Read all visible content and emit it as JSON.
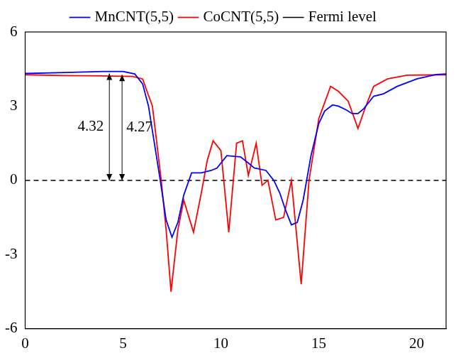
{
  "chart_data": {
    "type": "line",
    "xlim": [
      0,
      21.5
    ],
    "xticks": [
      0,
      5,
      10,
      15,
      20
    ],
    "ylim": [
      -6,
      6
    ],
    "yticks": [
      -6,
      -3,
      0,
      3,
      6
    ],
    "legend": "top",
    "grid": false,
    "series": [
      {
        "name": "MnCNT(5,5)",
        "color": "#0000ff",
        "line_style": "solid",
        "x": [
          0,
          2,
          4,
          5,
          5.6,
          6.0,
          6.3,
          6.6,
          6.9,
          7.2,
          7.5,
          7.8,
          8.1,
          8.5,
          9.0,
          9.5,
          9.8,
          10.3,
          11.0,
          11.4,
          11.7,
          12.3,
          12.7,
          13.0,
          13.3,
          13.6,
          13.9,
          14.2,
          14.6,
          15.0,
          15.3,
          15.7,
          16.0,
          16.4,
          16.7,
          17.0,
          17.3,
          17.8,
          18.3,
          19.0,
          20.0,
          21.0,
          21.5
        ],
        "values": [
          4.32,
          4.36,
          4.4,
          4.4,
          4.3,
          3.9,
          3.0,
          1.5,
          0.0,
          -1.6,
          -2.3,
          -1.7,
          -0.6,
          0.3,
          0.3,
          0.4,
          0.5,
          1.0,
          0.95,
          0.7,
          0.5,
          0.4,
          0.0,
          -0.5,
          -1.2,
          -1.8,
          -1.7,
          -0.8,
          1.0,
          2.3,
          2.8,
          3.05,
          3.0,
          2.85,
          2.7,
          2.7,
          2.9,
          3.4,
          3.5,
          3.8,
          4.1,
          4.28,
          4.3
        ]
      },
      {
        "name": "CoCNT(5,5)",
        "color": "#ff0000",
        "line_style": "solid",
        "x": [
          0,
          2,
          4,
          5.5,
          6.0,
          6.5,
          6.95,
          7.2,
          7.45,
          7.8,
          8.1,
          8.6,
          9.0,
          9.3,
          9.6,
          10.0,
          10.4,
          10.8,
          11.1,
          11.4,
          11.8,
          12.1,
          12.4,
          12.8,
          13.2,
          13.6,
          14.1,
          14.5,
          15.0,
          15.6,
          16.0,
          16.5,
          17.0,
          17.4,
          17.8,
          18.5,
          19.5,
          21.5
        ],
        "values": [
          4.27,
          4.24,
          4.22,
          4.2,
          4.1,
          3.0,
          0.0,
          -2.0,
          -4.5,
          -2.0,
          -0.8,
          -2.1,
          -0.5,
          0.8,
          1.6,
          1.2,
          -2.1,
          1.5,
          1.6,
          0.2,
          1.5,
          -0.2,
          0.0,
          -1.6,
          -1.5,
          0.0,
          -4.2,
          0.0,
          2.5,
          3.8,
          3.6,
          3.2,
          2.1,
          3.0,
          3.8,
          4.1,
          4.25,
          4.27
        ]
      },
      {
        "name": "Fermi level",
        "color": "#000000",
        "line_style": "dashed",
        "x": [
          0,
          21.5
        ],
        "values": [
          0,
          0
        ]
      }
    ],
    "annotations": [
      {
        "text": "4.32",
        "value": 4.32
      },
      {
        "text": "4.27",
        "value": 4.27
      }
    ]
  }
}
